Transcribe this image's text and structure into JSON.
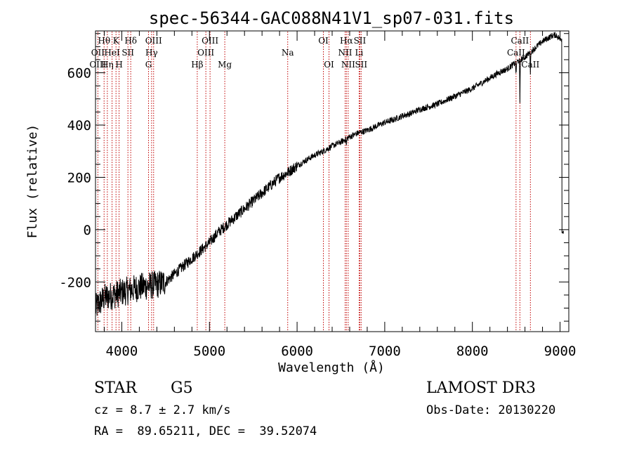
{
  "chart_data": {
    "type": "line",
    "title": "spec-56344-GAC088N41V1_sp07-031.fits",
    "xlabel": "Wavelength (Å)",
    "ylabel": "Flux (relative)",
    "xlim": [
      3700,
      9100
    ],
    "ylim": [
      -390,
      760
    ],
    "xticks": [
      4000,
      5000,
      6000,
      7000,
      8000,
      9000
    ],
    "yticks": [
      -200,
      0,
      200,
      400,
      600
    ],
    "spectrum_knots": [
      [
        3700,
        -300
      ],
      [
        3750,
        -280
      ],
      [
        3800,
        -260
      ],
      [
        3900,
        -250
      ],
      [
        4000,
        -240
      ],
      [
        4100,
        -230
      ],
      [
        4200,
        -220
      ],
      [
        4300,
        -215
      ],
      [
        4400,
        -210
      ],
      [
        4500,
        -200
      ],
      [
        4600,
        -170
      ],
      [
        4700,
        -140
      ],
      [
        4800,
        -110
      ],
      [
        4900,
        -80
      ],
      [
        5000,
        -50
      ],
      [
        5100,
        -10
      ],
      [
        5200,
        20
      ],
      [
        5300,
        50
      ],
      [
        5400,
        80
      ],
      [
        5500,
        110
      ],
      [
        5600,
        140
      ],
      [
        5700,
        170
      ],
      [
        5800,
        200
      ],
      [
        5900,
        220
      ],
      [
        6000,
        245
      ],
      [
        6100,
        265
      ],
      [
        6200,
        285
      ],
      [
        6300,
        300
      ],
      [
        6400,
        320
      ],
      [
        6500,
        335
      ],
      [
        6600,
        355
      ],
      [
        6700,
        370
      ],
      [
        6800,
        380
      ],
      [
        6900,
        395
      ],
      [
        7000,
        410
      ],
      [
        7100,
        420
      ],
      [
        7200,
        435
      ],
      [
        7300,
        445
      ],
      [
        7400,
        460
      ],
      [
        7500,
        470
      ],
      [
        7600,
        480
      ],
      [
        7700,
        495
      ],
      [
        7800,
        510
      ],
      [
        7900,
        525
      ],
      [
        8000,
        540
      ],
      [
        8100,
        560
      ],
      [
        8200,
        580
      ],
      [
        8300,
        600
      ],
      [
        8400,
        615
      ],
      [
        8500,
        640
      ],
      [
        8600,
        660
      ],
      [
        8700,
        690
      ],
      [
        8800,
        720
      ],
      [
        8900,
        740
      ],
      [
        8950,
        745
      ],
      [
        9000,
        730
      ]
    ],
    "absorption_dips": [
      {
        "wl": 8498,
        "depth": 60
      },
      {
        "wl": 8542,
        "depth": 170
      },
      {
        "wl": 8662,
        "depth": 80
      },
      {
        "wl": 6563,
        "depth": 30
      },
      {
        "wl": 9030,
        "depth": 740
      }
    ],
    "lines": [
      {
        "label": "Hθ",
        "wl": 3798,
        "row": 1
      },
      {
        "label": "OII",
        "wl": 3727,
        "row": 2
      },
      {
        "label": "OIII",
        "wl": 3727,
        "row": 3
      },
      {
        "label": "K",
        "wl": 3934,
        "row": 1
      },
      {
        "label": "HeI",
        "wl": 3889,
        "row": 2
      },
      {
        "label": "Hη",
        "wl": 3835,
        "row": 3
      },
      {
        "label": "SII",
        "wl": 4070,
        "row": 2
      },
      {
        "label": "H",
        "wl": 3969,
        "row": 3
      },
      {
        "label": "Hδ",
        "wl": 4102,
        "row": 1
      },
      {
        "label": "OIII",
        "wl": 4363,
        "row": 1
      },
      {
        "label": "Hγ",
        "wl": 4340,
        "row": 2
      },
      {
        "label": "G",
        "wl": 4305,
        "row": 3
      },
      {
        "label": "OIII",
        "wl": 5007,
        "row": 1
      },
      {
        "label": "OIII",
        "wl": 4959,
        "row": 2
      },
      {
        "label": "Hβ",
        "wl": 4861,
        "row": 3
      },
      {
        "label": "Mg",
        "wl": 5175,
        "row": 3
      },
      {
        "label": "Na",
        "wl": 5893,
        "row": 2
      },
      {
        "label": "OI",
        "wl": 6300,
        "row": 1
      },
      {
        "label": "OI",
        "wl": 6364,
        "row": 3
      },
      {
        "label": "Hα",
        "wl": 6563,
        "row": 1
      },
      {
        "label": "SII",
        "wl": 6716,
        "row": 1
      },
      {
        "label": "NII",
        "wl": 6548,
        "row": 2
      },
      {
        "label": "Li",
        "wl": 6708,
        "row": 2
      },
      {
        "label": "NII",
        "wl": 6583,
        "row": 3
      },
      {
        "label": "SII",
        "wl": 6731,
        "row": 3
      },
      {
        "label": "CaII",
        "wl": 8542,
        "row": 1
      },
      {
        "label": "CaII",
        "wl": 8498,
        "row": 2
      },
      {
        "label": "CaII",
        "wl": 8662,
        "row": 3
      }
    ],
    "colors": {
      "spectrum": "#000000",
      "line_marker": "#c00000",
      "axes": "#000000"
    }
  },
  "info": {
    "class_label": "STAR",
    "subclass_label": "G5",
    "redshift": "cz = 8.7 ± 2.7 km/s",
    "coords": "RA =  89.65211, DEC =  39.52074",
    "survey": "LAMOST DR3",
    "obs_date": "Obs-Date: 20130220"
  }
}
